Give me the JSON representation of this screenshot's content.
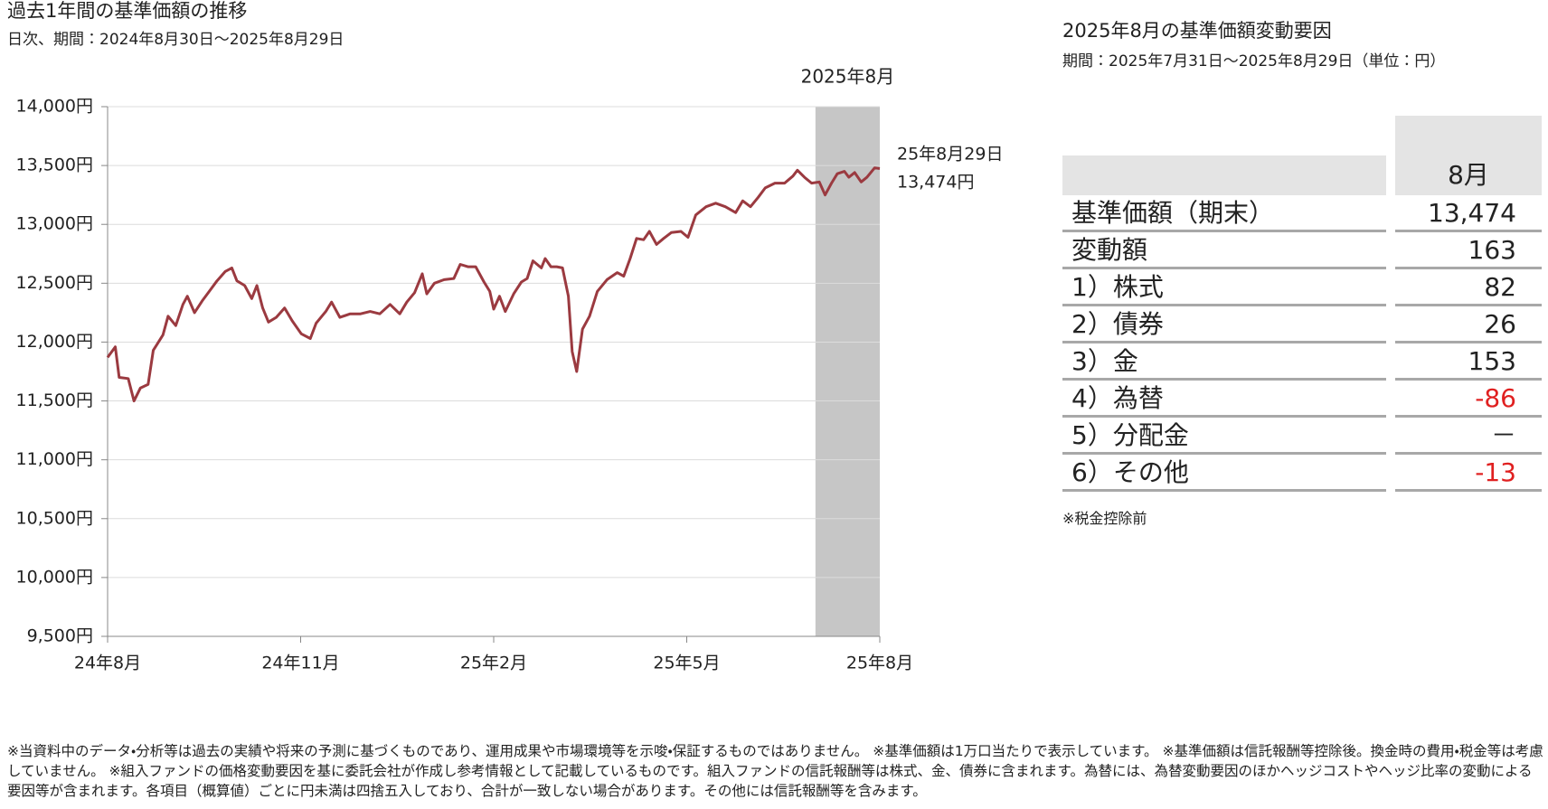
{
  "chart_data": {
    "type": "line",
    "title": "過去1年間の基準価額の推移",
    "subtitle": "日次、期間：2024年8月30日～2025年8月29日",
    "x": [
      0,
      0.12,
      0.18,
      0.32,
      0.41,
      0.51,
      0.63,
      0.71,
      0.86,
      0.94,
      1.06,
      1.17,
      1.24,
      1.35,
      1.47,
      1.58,
      1.7,
      1.83,
      1.93,
      2.01,
      2.13,
      2.24,
      2.32,
      2.41,
      2.5,
      2.62,
      2.75,
      2.87,
      3.01,
      3.15,
      3.24,
      3.39,
      3.48,
      3.61,
      3.77,
      3.93,
      4.08,
      4.23,
      4.39,
      4.54,
      4.65,
      4.77,
      4.89,
      4.96,
      5.08,
      5.23,
      5.38,
      5.48,
      5.6,
      5.72,
      5.85,
      5.94,
      6,
      6.09,
      6.18,
      6.31,
      6.43,
      6.52,
      6.61,
      6.74,
      6.8,
      6.89,
      6.98,
      7.07,
      7.16,
      7.22,
      7.29,
      7.38,
      7.49,
      7.61,
      7.76,
      7.92,
      8.02,
      8.12,
      8.22,
      8.33,
      8.42,
      8.53,
      8.64,
      8.76,
      8.91,
      9.02,
      9.14,
      9.3,
      9.45,
      9.6,
      9.76,
      9.87,
      9.99,
      10.11,
      10.22,
      10.37,
      10.52,
      10.65,
      10.72,
      10.83,
      10.94,
      11.06,
      11.15,
      11.25,
      11.34,
      11.45,
      11.52,
      11.61,
      11.71,
      11.8,
      11.92,
      12
    ],
    "values": [
      11870,
      11960,
      11700,
      11690,
      11500,
      11610,
      11640,
      11930,
      12060,
      12220,
      12140,
      12320,
      12390,
      12250,
      12350,
      12430,
      12520,
      12600,
      12630,
      12520,
      12480,
      12370,
      12480,
      12290,
      12170,
      12210,
      12290,
      12180,
      12070,
      12030,
      12160,
      12260,
      12340,
      12210,
      12240,
      12240,
      12260,
      12240,
      12320,
      12240,
      12340,
      12420,
      12580,
      12410,
      12500,
      12530,
      12540,
      12660,
      12640,
      12640,
      12510,
      12430,
      12280,
      12390,
      12260,
      12410,
      12510,
      12540,
      12690,
      12630,
      12710,
      12640,
      12640,
      12630,
      12390,
      11920,
      11750,
      12110,
      12220,
      12430,
      12530,
      12590,
      12560,
      12710,
      12880,
      12870,
      12940,
      12830,
      12880,
      12930,
      12940,
      12890,
      13080,
      13150,
      13180,
      13150,
      13100,
      13200,
      13150,
      13230,
      13310,
      13350,
      13350,
      13410,
      13460,
      13400,
      13350,
      13360,
      13250,
      13350,
      13430,
      13450,
      13400,
      13440,
      13360,
      13400,
      13480,
      13474
    ],
    "color": "#9b3a40",
    "xlim": [
      0,
      12
    ],
    "xticks": [
      {
        "value": 0,
        "label": "24年8月"
      },
      {
        "value": 3,
        "label": "24年11月"
      },
      {
        "value": 6,
        "label": "25年2月"
      },
      {
        "value": 9,
        "label": "25年5月"
      },
      {
        "value": 12,
        "label": "25年8月"
      }
    ],
    "ylim": [
      9500,
      14000
    ],
    "yticks": [
      {
        "value": 9500,
        "label": "9,500円"
      },
      {
        "value": 10000,
        "label": "10,000円"
      },
      {
        "value": 10500,
        "label": "10,500円"
      },
      {
        "value": 11000,
        "label": "11,000円"
      },
      {
        "value": 11500,
        "label": "11,500円"
      },
      {
        "value": 12000,
        "label": "12,000円"
      },
      {
        "value": 12500,
        "label": "12,500円"
      },
      {
        "value": 13000,
        "label": "13,000円"
      },
      {
        "value": 13500,
        "label": "13,500円"
      },
      {
        "value": 14000,
        "label": "14,000円"
      }
    ],
    "grid": true,
    "highlight": {
      "label": "2025年8月",
      "range": [
        11,
        12
      ],
      "color": "#c6c6c6"
    },
    "end_label": {
      "date": "25年8月29日",
      "value": "13,474円"
    }
  },
  "table": {
    "title": "2025年8月の基準価額変動要因",
    "subtitle": "期間：2025年7月31日～2025年8月29日（単位：円）",
    "header": "8月",
    "rows": [
      [
        "基準価額（期末）",
        "13,474"
      ],
      [
        "変動額",
        "163"
      ],
      [
        "1）株式",
        "82"
      ],
      [
        "2）債券",
        "26"
      ],
      [
        "3）金",
        "153"
      ],
      [
        "4）為替",
        "-86"
      ],
      [
        "5）分配金",
        "－"
      ],
      [
        "6）その他",
        "-13"
      ]
    ],
    "negative_color": "#e02020",
    "note": "※税金控除前"
  },
  "footnote": "※当資料中のデータ・分析等は過去の実績や将来の予測に基づくものであり、運用成果や市場環境等を示唆・保証するものではありません。 ※基準価額は1万口当たりで表示しています。 ※基準価額は信託報酬等控除後。換金時の費用・税金等は考慮していません。 ※組入ファンドの価格変動要因を基に委託会社が作成し参考情報として記載しているものです。組入ファンドの信託報酬等は株式、金、債券に含まれます。為替には、為替変動要因のほかヘッジコストやヘッジ比率の変動による要因等が含まれます。各項目（概算値）ごとに円未満は四捨五入しており、合計が一致しない場合があります。その他には信託報酬等を含みます。"
}
